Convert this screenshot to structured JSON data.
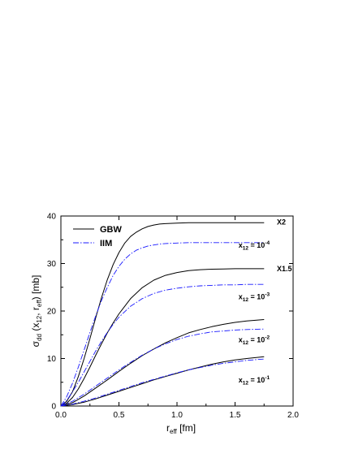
{
  "chart_data": {
    "type": "line",
    "xlim": [
      0,
      2.0
    ],
    "ylim": [
      0,
      40
    ],
    "x_ticks": [
      "0.0",
      "0.5",
      "1.0",
      "1.5",
      "2.0"
    ],
    "y_ticks": [
      "0",
      "10",
      "20",
      "30",
      "40"
    ],
    "xlabel": {
      "main": "r",
      "sub": "eff",
      "rest": " [fm]"
    },
    "ylabel": {
      "main": "σ",
      "sub1": "dd",
      "mid1": " (x",
      "sub2": "12",
      "mid2": ", r",
      "sub3": "eff",
      "rest": ")  [mb]"
    },
    "legend": {
      "position": "top-left",
      "items": [
        {
          "label": "GBW",
          "style": "solid"
        },
        {
          "label": "IIM",
          "style": "dashdot"
        }
      ]
    },
    "colors": {
      "GBW": "#000000",
      "IIM": "#1a1aff"
    },
    "series": [
      {
        "name": "GBW",
        "group": "x12 = 10^-4",
        "style": "solid",
        "x": [
          0,
          0.05,
          0.1,
          0.15,
          0.2,
          0.25,
          0.3,
          0.35,
          0.4,
          0.45,
          0.5,
          0.55,
          0.6,
          0.65,
          0.7,
          0.75,
          0.8,
          0.85,
          0.9,
          1.0,
          1.1,
          1.2,
          1.3,
          1.4,
          1.5,
          1.6,
          1.75
        ],
        "y": [
          0,
          1.0,
          3.0,
          6.2,
          10.0,
          14.2,
          18.6,
          22.8,
          26.6,
          29.8,
          32.3,
          34.3,
          35.7,
          36.6,
          37.3,
          37.8,
          38.1,
          38.3,
          38.4,
          38.5,
          38.6,
          38.6,
          38.6,
          38.6,
          38.6,
          38.6,
          38.6
        ]
      },
      {
        "name": "IIM",
        "group": "x12 = 10^-4",
        "style": "dashdot",
        "x": [
          0,
          0.05,
          0.1,
          0.15,
          0.2,
          0.25,
          0.3,
          0.35,
          0.4,
          0.45,
          0.5,
          0.55,
          0.6,
          0.65,
          0.7,
          0.75,
          0.8,
          0.85,
          0.9,
          1.0,
          1.1,
          1.2,
          1.3,
          1.4,
          1.5,
          1.6,
          1.75
        ],
        "y": [
          0,
          2.0,
          4.8,
          8.2,
          11.8,
          15.5,
          19.0,
          22.2,
          25.0,
          27.5,
          29.4,
          30.9,
          32.0,
          32.8,
          33.3,
          33.7,
          33.9,
          34.1,
          34.2,
          34.3,
          34.4,
          34.4,
          34.4,
          34.4,
          34.4,
          34.4,
          34.4
        ]
      },
      {
        "name": "GBW",
        "group": "x12 = 10^-3",
        "style": "solid",
        "x": [
          0,
          0.05,
          0.1,
          0.15,
          0.2,
          0.25,
          0.3,
          0.35,
          0.4,
          0.45,
          0.5,
          0.6,
          0.7,
          0.8,
          0.9,
          1.0,
          1.1,
          1.2,
          1.3,
          1.4,
          1.5,
          1.6,
          1.75
        ],
        "y": [
          0,
          0.6,
          1.8,
          3.6,
          5.8,
          8.2,
          10.7,
          13.1,
          15.4,
          17.5,
          19.4,
          22.6,
          24.9,
          26.5,
          27.5,
          28.1,
          28.5,
          28.7,
          28.8,
          28.85,
          28.9,
          28.9,
          28.9
        ]
      },
      {
        "name": "IIM",
        "group": "x12 = 10^-3",
        "style": "dashdot",
        "x": [
          0,
          0.05,
          0.1,
          0.15,
          0.2,
          0.25,
          0.3,
          0.35,
          0.4,
          0.45,
          0.5,
          0.6,
          0.7,
          0.8,
          0.9,
          1.0,
          1.1,
          1.2,
          1.3,
          1.4,
          1.5,
          1.6,
          1.75
        ],
        "y": [
          0,
          1.2,
          3.0,
          5.0,
          7.2,
          9.4,
          11.6,
          13.6,
          15.5,
          17.2,
          18.7,
          21.0,
          22.6,
          23.7,
          24.4,
          24.8,
          25.1,
          25.3,
          25.4,
          25.5,
          25.5,
          25.6,
          25.6
        ]
      },
      {
        "name": "GBW",
        "group": "x12 = 10^-2",
        "style": "solid",
        "x": [
          0,
          0.1,
          0.2,
          0.3,
          0.4,
          0.5,
          0.6,
          0.7,
          0.8,
          0.9,
          1.0,
          1.1,
          1.2,
          1.3,
          1.4,
          1.5,
          1.6,
          1.75
        ],
        "y": [
          0,
          0.7,
          2.1,
          3.8,
          5.5,
          7.3,
          9.0,
          10.6,
          12.0,
          13.3,
          14.4,
          15.4,
          16.1,
          16.7,
          17.2,
          17.6,
          17.9,
          18.2
        ]
      },
      {
        "name": "IIM",
        "group": "x12 = 10^-2",
        "style": "dashdot",
        "x": [
          0,
          0.1,
          0.2,
          0.3,
          0.4,
          0.5,
          0.6,
          0.7,
          0.8,
          0.9,
          1.0,
          1.1,
          1.2,
          1.3,
          1.4,
          1.5,
          1.6,
          1.75
        ],
        "y": [
          0,
          1.0,
          2.5,
          4.2,
          5.9,
          7.6,
          9.2,
          10.7,
          12.0,
          13.1,
          14.0,
          14.7,
          15.2,
          15.6,
          15.8,
          16.0,
          16.1,
          16.2
        ]
      },
      {
        "name": "GBW",
        "group": "x12 = 10^-1",
        "style": "solid",
        "x": [
          0,
          0.1,
          0.2,
          0.3,
          0.4,
          0.5,
          0.6,
          0.7,
          0.8,
          0.9,
          1.0,
          1.1,
          1.2,
          1.3,
          1.4,
          1.5,
          1.6,
          1.75
        ],
        "y": [
          0,
          0.3,
          0.8,
          1.5,
          2.3,
          3.1,
          3.9,
          4.7,
          5.5,
          6.2,
          6.9,
          7.6,
          8.2,
          8.8,
          9.3,
          9.7,
          10.0,
          10.4
        ]
      },
      {
        "name": "IIM",
        "group": "x12 = 10^-1",
        "style": "dashdot",
        "x": [
          0,
          0.1,
          0.2,
          0.3,
          0.4,
          0.5,
          0.6,
          0.7,
          0.8,
          0.9,
          1.0,
          1.1,
          1.2,
          1.3,
          1.4,
          1.5,
          1.6,
          1.75
        ],
        "y": [
          0,
          0.4,
          1.0,
          1.7,
          2.5,
          3.3,
          4.1,
          4.9,
          5.6,
          6.3,
          7.0,
          7.6,
          8.1,
          8.6,
          9.0,
          9.3,
          9.6,
          9.9
        ]
      }
    ],
    "annotations": [
      {
        "text": "X2",
        "x": 1.86,
        "y": 38.2
      },
      {
        "text": "X1.5",
        "x": 1.86,
        "y": 28.4
      }
    ],
    "curve_labels": [
      {
        "base": "x",
        "sub": "12",
        "mid": " = 10",
        "sup": "-4",
        "x": 1.53,
        "y": 33.3
      },
      {
        "base": "x",
        "sub": "12",
        "mid": " = 10",
        "sup": "-3",
        "x": 1.53,
        "y": 22.5
      },
      {
        "base": "x",
        "sub": "12",
        "mid": " = 10",
        "sup": "-2",
        "x": 1.53,
        "y": 13.4
      },
      {
        "base": "x",
        "sub": "12",
        "mid": " = 10",
        "sup": "-1",
        "x": 1.53,
        "y": 5.0
      }
    ]
  }
}
